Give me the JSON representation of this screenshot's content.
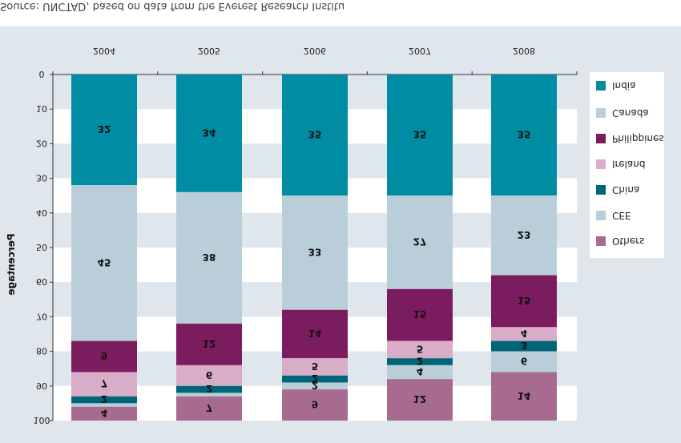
{
  "source_note": "Source: UNCTAD, based on data from the Everest Research Institute.",
  "colors": {
    "India": "#008ca2",
    "Canada": "#b9ced9",
    "Philippines": "#7b1c5e",
    "Ireland": "#d9acc8",
    "China": "#006677",
    "CEE": "#b9ced9",
    "Others": "#a86b90"
  },
  "chart_data": {
    "type": "bar",
    "stacked": true,
    "orientation": "vertical",
    "image_flipped_vertically": true,
    "categories": [
      "2004",
      "2005",
      "2006",
      "2007",
      "2008"
    ],
    "ylabel": "Percentage",
    "ylim": [
      0,
      100
    ],
    "yticks": [
      "0",
      "10",
      "20",
      "30",
      "40",
      "50",
      "60",
      "70",
      "80",
      "90",
      "100"
    ],
    "legend_position": "right",
    "series": [
      {
        "name": "India",
        "values": [
          32,
          34,
          35,
          35,
          35
        ]
      },
      {
        "name": "Canada",
        "values": [
          45,
          38,
          33,
          27,
          23
        ]
      },
      {
        "name": "Philippines",
        "values": [
          9,
          12,
          14,
          15,
          15
        ]
      },
      {
        "name": "Ireland",
        "values": [
          7,
          6,
          5,
          5,
          4
        ]
      },
      {
        "name": "China",
        "values": [
          2,
          2,
          2,
          2,
          3
        ]
      },
      {
        "name": "CEE",
        "values": [
          1,
          1,
          2,
          4,
          6
        ]
      },
      {
        "name": "Others",
        "values": [
          4,
          7,
          9,
          12,
          14
        ]
      }
    ],
    "data_labels": {
      "India": [
        "32",
        "34",
        "35",
        "35",
        "35"
      ],
      "Canada": [
        "45",
        "38",
        "33",
        "27",
        "23"
      ],
      "Philippines": [
        "9",
        "12",
        "14",
        "15",
        "15"
      ],
      "Ireland": [
        "7",
        "6",
        "5",
        "5",
        "4"
      ],
      "China": [
        "2",
        "2",
        "2",
        "2",
        "3"
      ],
      "CEE": [
        "",
        "",
        "2",
        "4",
        "6"
      ],
      "Others": [
        "4",
        "7",
        "9",
        "12",
        "14"
      ]
    },
    "legend": [
      "India",
      "Canada",
      "Philippines",
      "Ireland",
      "China",
      "CEE",
      "Others"
    ]
  }
}
